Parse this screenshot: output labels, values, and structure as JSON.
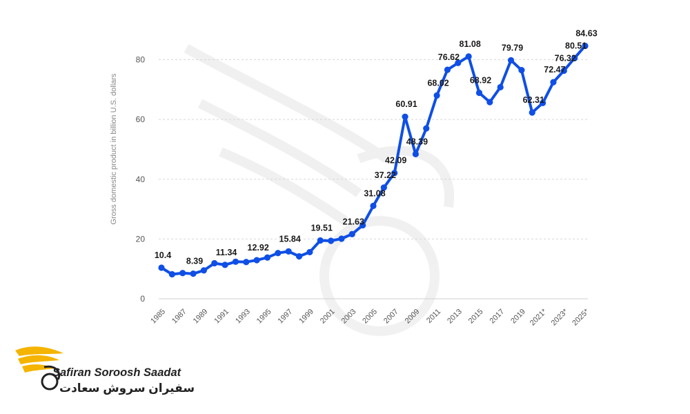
{
  "chart_data": {
    "type": "line",
    "title": "",
    "xlabel": "",
    "ylabel": "Gross domestic product in billion U.S. dollars",
    "ylim": [
      0,
      90
    ],
    "yticks": [
      "0",
      "20",
      "40",
      "60",
      "80"
    ],
    "grid": true,
    "x": [
      "1985",
      "1986",
      "1987",
      "1988",
      "1989",
      "1990",
      "1991",
      "1992",
      "1993",
      "1994",
      "1995",
      "1996",
      "1997",
      "1998",
      "1999",
      "2000",
      "2001",
      "2002",
      "2003",
      "2004",
      "2005",
      "2006",
      "2007",
      "2008",
      "2009",
      "2010",
      "2011",
      "2012",
      "2013",
      "2014",
      "2015",
      "2016",
      "2017",
      "2018",
      "2019",
      "2020",
      "2021*",
      "2022*",
      "2023*",
      "2024*",
      "2025*"
    ],
    "xtick_labels": [
      "1985",
      "1987",
      "1989",
      "1991",
      "1993",
      "1995",
      "1997",
      "1999",
      "2001",
      "2003",
      "2005",
      "2007",
      "2009",
      "2011",
      "2013",
      "2015",
      "2017",
      "2019",
      "2021*",
      "2023*",
      "2025*"
    ],
    "series": [
      {
        "values": [
          10.4,
          8.2,
          8.6,
          8.39,
          9.5,
          11.9,
          11.34,
          12.4,
          12.3,
          12.92,
          13.8,
          15.3,
          15.84,
          14.2,
          15.6,
          19.51,
          19.4,
          20.1,
          21.63,
          24.6,
          31.08,
          37.22,
          42.09,
          60.91,
          48.39,
          57.0,
          68.02,
          76.62,
          78.9,
          81.08,
          68.92,
          65.8,
          70.8,
          79.79,
          76.5,
          62.31,
          65.5,
          72.47,
          76.32,
          80.51,
          84.63
        ],
        "labels": [
          "10.4",
          "",
          "",
          "8.39",
          "",
          "",
          "11.34",
          "",
          "",
          "12.92",
          "",
          "",
          "15.84",
          "",
          "",
          "19.51",
          "",
          "",
          "21.63",
          "",
          "31.08",
          "37.22",
          "42.09",
          "60.91",
          "48.39",
          "",
          "68.02",
          "76.62",
          "",
          "81.08",
          "68.92",
          "",
          "",
          "79.79",
          "",
          "62.31",
          "",
          "72.47",
          "76.32",
          "80.51",
          "84.63"
        ]
      }
    ],
    "line_color": "#0f4fe6"
  },
  "brand": {
    "name_en": "Safiran Soroosh Saadat",
    "name_fa": "سفیران سروش سعادت"
  }
}
